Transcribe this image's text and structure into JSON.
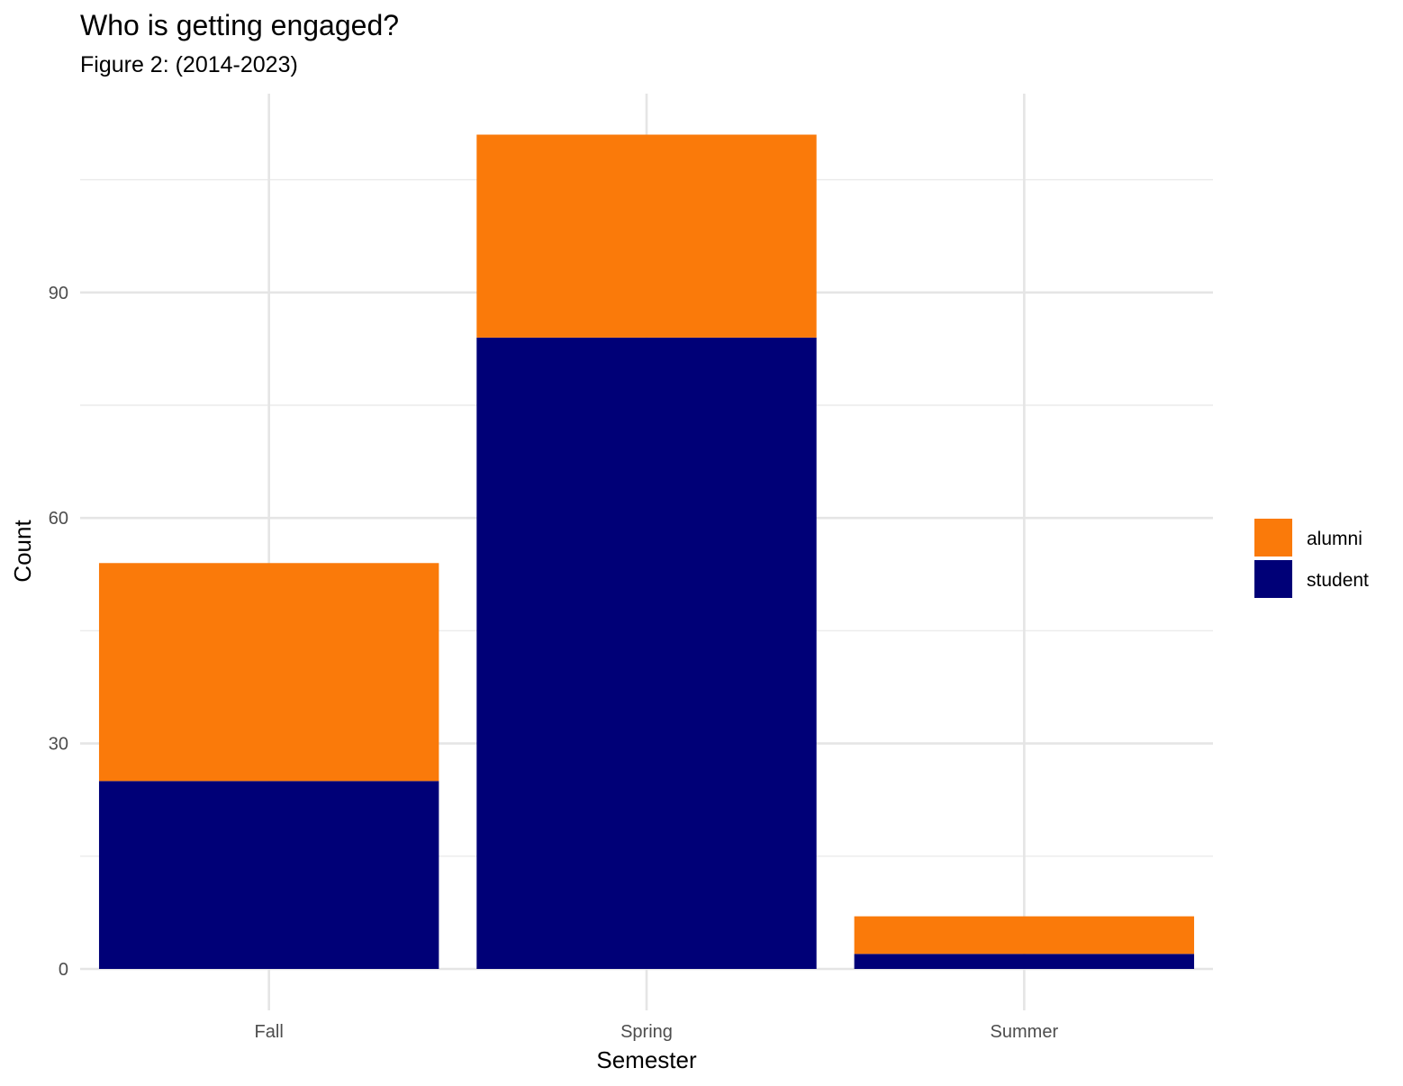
{
  "chart_data": {
    "type": "bar",
    "stacked": true,
    "title": "Who is getting engaged?",
    "subtitle": "Figure 2: (2014-2023)",
    "xlabel": "Semester",
    "ylabel": "Count",
    "categories": [
      "Fall",
      "Spring",
      "Summer"
    ],
    "series": [
      {
        "name": "student",
        "color": "#000077",
        "values": [
          25,
          84,
          2
        ]
      },
      {
        "name": "alumni",
        "color": "#FA7A0A",
        "values": [
          29,
          27,
          5
        ]
      }
    ],
    "ylim": [
      0,
      115
    ],
    "yticks": [
      0,
      30,
      60,
      90
    ],
    "legend": {
      "position": "right",
      "order": [
        "alumni",
        "student"
      ]
    },
    "grid": true
  }
}
